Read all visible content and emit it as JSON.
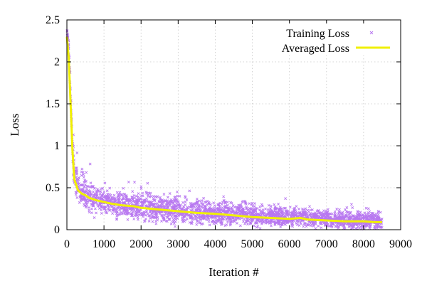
{
  "chart_data": {
    "type": "scatter",
    "xlabel": "Iteration #",
    "ylabel": "Loss",
    "xlim": [
      0,
      9000
    ],
    "ylim": [
      0,
      2.5
    ],
    "x_ticks": [
      0,
      1000,
      2000,
      3000,
      4000,
      5000,
      6000,
      7000,
      8000,
      9000
    ],
    "y_ticks": [
      0,
      0.5,
      1,
      1.5,
      2,
      2.5
    ],
    "x_tick_labels": [
      "0",
      "1000",
      "2000",
      "3000",
      "4000",
      "5000",
      "6000",
      "7000",
      "8000",
      "9000"
    ],
    "y_tick_labels": [
      "0",
      "0.5",
      "1",
      "1.5",
      "2",
      "2.5"
    ],
    "grid": true,
    "legend_position": "top-right",
    "series": [
      {
        "name": "Training Loss",
        "kind": "scatter",
        "color": "#b878f0",
        "x_range": [
          0,
          8500
        ],
        "envelope": {
          "x": [
            0,
            50,
            100,
            150,
            200,
            300,
            400,
            600,
            800,
            1000,
            1500,
            2000,
            3000,
            4000,
            5000,
            6000,
            7000,
            8000,
            8500
          ],
          "mean": [
            2.35,
            2.2,
            1.6,
            1.0,
            0.62,
            0.5,
            0.44,
            0.39,
            0.36,
            0.34,
            0.3,
            0.27,
            0.23,
            0.2,
            0.17,
            0.15,
            0.13,
            0.11,
            0.1
          ],
          "spread": [
            0.05,
            0.08,
            0.12,
            0.14,
            0.16,
            0.17,
            0.17,
            0.17,
            0.16,
            0.16,
            0.15,
            0.14,
            0.13,
            0.12,
            0.11,
            0.1,
            0.09,
            0.09,
            0.09
          ]
        }
      },
      {
        "name": "Averaged Loss",
        "kind": "line",
        "color": "#f0f000",
        "x": [
          0,
          50,
          100,
          150,
          200,
          300,
          400,
          500,
          600,
          800,
          1000,
          1200,
          1500,
          1800,
          2000,
          2500,
          3000,
          3500,
          4000,
          4500,
          5000,
          5500,
          6000,
          6300,
          6500,
          7000,
          7500,
          8000,
          8300,
          8500
        ],
        "y": [
          2.3,
          2.05,
          1.5,
          0.95,
          0.6,
          0.47,
          0.43,
          0.41,
          0.38,
          0.35,
          0.33,
          0.31,
          0.29,
          0.28,
          0.26,
          0.24,
          0.22,
          0.2,
          0.19,
          0.17,
          0.15,
          0.14,
          0.13,
          0.14,
          0.12,
          0.11,
          0.1,
          0.1,
          0.09,
          0.09
        ]
      }
    ]
  }
}
